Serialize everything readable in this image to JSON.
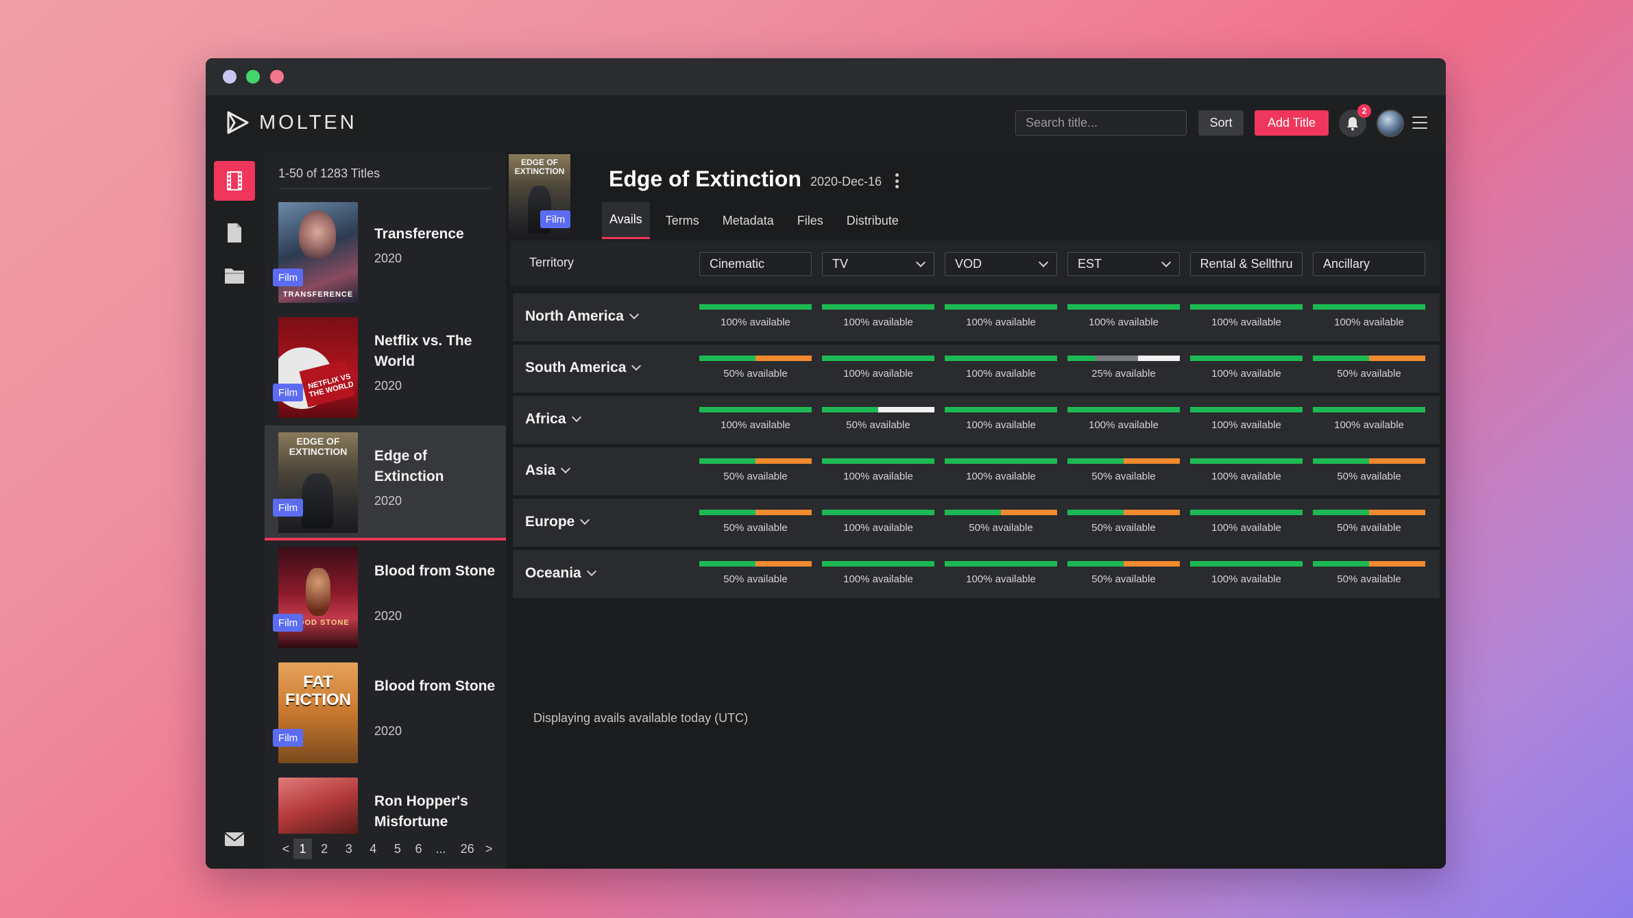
{
  "app": {
    "logo_text": "MOLTEN"
  },
  "header": {
    "search_placeholder": "Search title...",
    "sort_label": "Sort",
    "add_label": "Add Title",
    "notification_count": "2"
  },
  "list": {
    "count_text": "1-50 of 1283 Titles",
    "items": [
      {
        "title": "Transference",
        "year": "2020",
        "badge": "Film",
        "poster_text": "TRANSFERENCE",
        "selected": false
      },
      {
        "title": "Netflix vs. The World",
        "year": "2020",
        "badge": "Film",
        "poster_text": "NETFLIX VS THE WORLD",
        "selected": false
      },
      {
        "title": "Edge of Extinction",
        "year": "2020",
        "badge": "Film",
        "poster_text": "EDGE OF EXTINCTION",
        "selected": true
      },
      {
        "title": "Blood from Stone",
        "year": "2020",
        "badge": "Film",
        "poster_text": "BLOOD STONE",
        "selected": false
      },
      {
        "title": "Blood from Stone",
        "year": "2020",
        "badge": "Film",
        "poster_text": "FAT FICTION",
        "selected": false
      },
      {
        "title": "Ron Hopper's Misfortune",
        "year": "",
        "badge": "",
        "poster_text": "",
        "selected": false
      }
    ],
    "pager": {
      "prev": "<",
      "pages": [
        "1",
        "2",
        "3",
        "4",
        "5",
        "6"
      ],
      "ellipsis": "...",
      "last": "26",
      "next": ">",
      "current": "1"
    }
  },
  "detail": {
    "title": "Edge of Extinction",
    "date": "2020-Dec-16",
    "badge": "Film",
    "poster_text": "EDGE OF EXTINCTION",
    "tabs": [
      "Avails",
      "Terms",
      "Metadata",
      "Files",
      "Distribute"
    ],
    "active_tab": "Avails",
    "territory_label": "Territory",
    "columns": [
      {
        "label": "Cinematic",
        "dropdown": false
      },
      {
        "label": "TV",
        "dropdown": true
      },
      {
        "label": "VOD",
        "dropdown": true
      },
      {
        "label": "EST",
        "dropdown": true
      },
      {
        "label": "Rental & Sellthru",
        "dropdown": false
      },
      {
        "label": "Ancillary",
        "dropdown": false
      }
    ],
    "regions": [
      {
        "name": "North America",
        "cells": [
          {
            "pct": 100,
            "label": "100% available",
            "segments": [
              "green"
            ]
          },
          {
            "pct": 100,
            "label": "100% available",
            "segments": [
              "green"
            ]
          },
          {
            "pct": 100,
            "label": "100% available",
            "segments": [
              "green"
            ]
          },
          {
            "pct": 100,
            "label": "100% available",
            "segments": [
              "green"
            ]
          },
          {
            "pct": 100,
            "label": "100% available",
            "segments": [
              "green"
            ]
          },
          {
            "pct": 100,
            "label": "100% available",
            "segments": [
              "green"
            ]
          }
        ]
      },
      {
        "name": "South America",
        "cells": [
          {
            "pct": 50,
            "label": "50% available",
            "segments": [
              "green",
              "orange"
            ]
          },
          {
            "pct": 100,
            "label": "100% available",
            "segments": [
              "green"
            ]
          },
          {
            "pct": 100,
            "label": "100% available",
            "segments": [
              "green"
            ]
          },
          {
            "pct": 25,
            "label": "25% available",
            "segments": [
              "green",
              "gray",
              "white"
            ]
          },
          {
            "pct": 100,
            "label": "100% available",
            "segments": [
              "green"
            ]
          },
          {
            "pct": 50,
            "label": "50% available",
            "segments": [
              "green",
              "orange"
            ]
          }
        ]
      },
      {
        "name": "Africa",
        "cells": [
          {
            "pct": 100,
            "label": "100% available",
            "segments": [
              "green"
            ]
          },
          {
            "pct": 50,
            "label": "50% available",
            "segments": [
              "green",
              "white"
            ]
          },
          {
            "pct": 100,
            "label": "100% available",
            "segments": [
              "green"
            ]
          },
          {
            "pct": 100,
            "label": "100% available",
            "segments": [
              "green"
            ]
          },
          {
            "pct": 100,
            "label": "100% available",
            "segments": [
              "green"
            ]
          },
          {
            "pct": 100,
            "label": "100% available",
            "segments": [
              "green"
            ]
          }
        ]
      },
      {
        "name": "Asia",
        "cells": [
          {
            "pct": 50,
            "label": "50% available",
            "segments": [
              "green",
              "orange"
            ]
          },
          {
            "pct": 100,
            "label": "100% available",
            "segments": [
              "green"
            ]
          },
          {
            "pct": 100,
            "label": "100% available",
            "segments": [
              "green"
            ]
          },
          {
            "pct": 50,
            "label": "50% available",
            "segments": [
              "green",
              "orange"
            ]
          },
          {
            "pct": 100,
            "label": "100% available",
            "segments": [
              "green"
            ]
          },
          {
            "pct": 50,
            "label": "50% available",
            "segments": [
              "green",
              "orange"
            ]
          }
        ]
      },
      {
        "name": "Europe",
        "cells": [
          {
            "pct": 50,
            "label": "50% available",
            "segments": [
              "green",
              "orange"
            ]
          },
          {
            "pct": 100,
            "label": "100% available",
            "segments": [
              "green"
            ]
          },
          {
            "pct": 50,
            "label": "50% available",
            "segments": [
              "green",
              "orange"
            ]
          },
          {
            "pct": 50,
            "label": "50% available",
            "segments": [
              "green",
              "orange"
            ]
          },
          {
            "pct": 100,
            "label": "100% available",
            "segments": [
              "green"
            ]
          },
          {
            "pct": 50,
            "label": "50% available",
            "segments": [
              "green",
              "orange"
            ]
          }
        ]
      },
      {
        "name": "Oceania",
        "cells": [
          {
            "pct": 50,
            "label": "50% available",
            "segments": [
              "green",
              "orange"
            ]
          },
          {
            "pct": 100,
            "label": "100% available",
            "segments": [
              "green"
            ]
          },
          {
            "pct": 100,
            "label": "100% available",
            "segments": [
              "green"
            ]
          },
          {
            "pct": 50,
            "label": "50% available",
            "segments": [
              "green",
              "orange"
            ]
          },
          {
            "pct": 100,
            "label": "100% available",
            "segments": [
              "green"
            ]
          },
          {
            "pct": 50,
            "label": "50% available",
            "segments": [
              "green",
              "orange"
            ]
          }
        ]
      }
    ],
    "footnote": "Displaying avails available today (UTC)"
  },
  "colors": {
    "accent": "#f0365c",
    "badge": "#5b6cf3",
    "green": "#1db954",
    "orange": "#f08a2e",
    "gray": "#7a7b7e",
    "white": "#f2f2f2"
  },
  "icons": {
    "rail": [
      "film-icon",
      "document-icon",
      "folder-icon",
      "mail-icon"
    ],
    "header": [
      "bell-icon",
      "avatar",
      "hamburger-menu-icon"
    ]
  }
}
